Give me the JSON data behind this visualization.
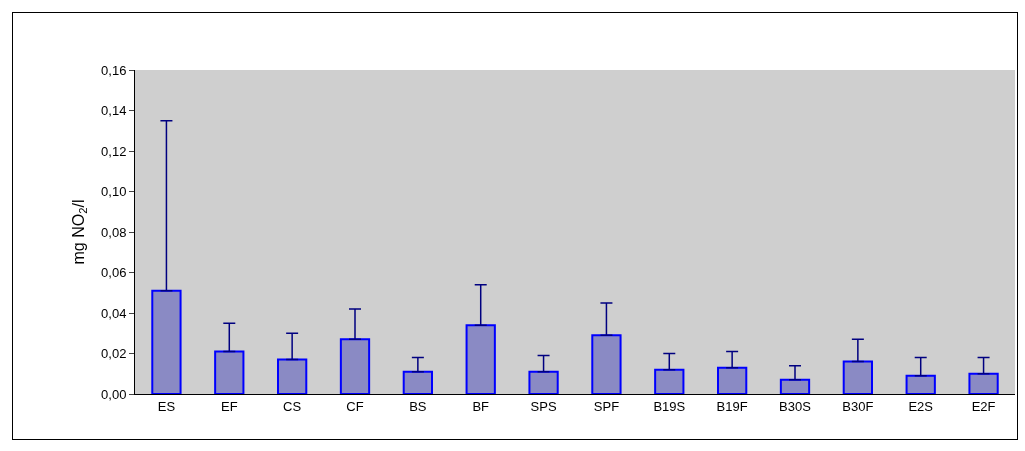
{
  "chart_data": {
    "type": "bar",
    "ylabel": "mg NO$_{2}$/l",
    "categories": [
      "ES",
      "EF",
      "CS",
      "CF",
      "BS",
      "BF",
      "SPS",
      "SPF",
      "B19S",
      "B19F",
      "B30S",
      "B30F",
      "E2S",
      "E2F"
    ],
    "values": [
      0.051,
      0.021,
      0.017,
      0.027,
      0.011,
      0.034,
      0.011,
      0.029,
      0.012,
      0.013,
      0.007,
      0.016,
      0.009,
      0.01
    ],
    "errors": [
      [
        0.051,
        0.135
      ],
      [
        0.021,
        0.035
      ],
      [
        0.017,
        0.03
      ],
      [
        0.027,
        0.042
      ],
      [
        0.011,
        0.018
      ],
      [
        0.034,
        0.054
      ],
      [
        0.011,
        0.019
      ],
      [
        0.029,
        0.045
      ],
      [
        0.012,
        0.02
      ],
      [
        0.013,
        0.021
      ],
      [
        0.007,
        0.014
      ],
      [
        0.016,
        0.027
      ],
      [
        0.009,
        0.018
      ],
      [
        0.01,
        0.018
      ]
    ],
    "color": "#8a8ac4",
    "ylim": [
      0,
      0.16
    ],
    "yticks": [
      {
        "value": 0,
        "label": "0,00"
      },
      {
        "value": 0.02,
        "label": "0,02"
      },
      {
        "value": 0.04,
        "label": "0,04"
      },
      {
        "value": 0.06,
        "label": "0,06"
      },
      {
        "value": 0.08,
        "label": "0,08"
      },
      {
        "value": 0.1,
        "label": "0,10"
      },
      {
        "value": 0.12,
        "label": "0,12"
      },
      {
        "value": 0.14,
        "label": "0,14"
      },
      {
        "value": 0.16,
        "label": "0,16"
      }
    ],
    "grid": false
  }
}
